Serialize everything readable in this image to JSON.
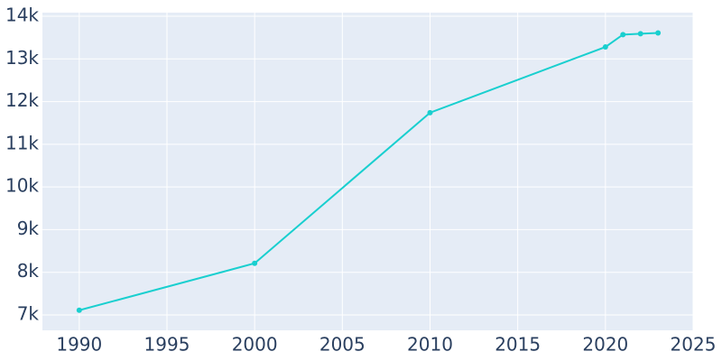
{
  "chart_data": {
    "type": "line",
    "x": [
      1990,
      2000,
      2010,
      2020,
      2021,
      2022,
      2023
    ],
    "series": [
      {
        "color": "#19cfcf",
        "values": [
          7110,
          8210,
          11740,
          13280,
          13570,
          13590,
          13610
        ]
      }
    ],
    "xlim": [
      1987.9,
      2025
    ],
    "xticks": [
      1990,
      1995,
      2000,
      2005,
      2010,
      2015,
      2020,
      2025
    ],
    "ylim": [
      6640,
      14085
    ],
    "yticks": [
      {
        "value": 7000,
        "label": "7k"
      },
      {
        "value": 8000,
        "label": "8k"
      },
      {
        "value": 9000,
        "label": "9k"
      },
      {
        "value": 10000,
        "label": "10k"
      },
      {
        "value": 11000,
        "label": "11k"
      },
      {
        "value": 12000,
        "label": "12k"
      },
      {
        "value": 13000,
        "label": "13k"
      },
      {
        "value": 14000,
        "label": "14k"
      }
    ],
    "grid": true
  }
}
